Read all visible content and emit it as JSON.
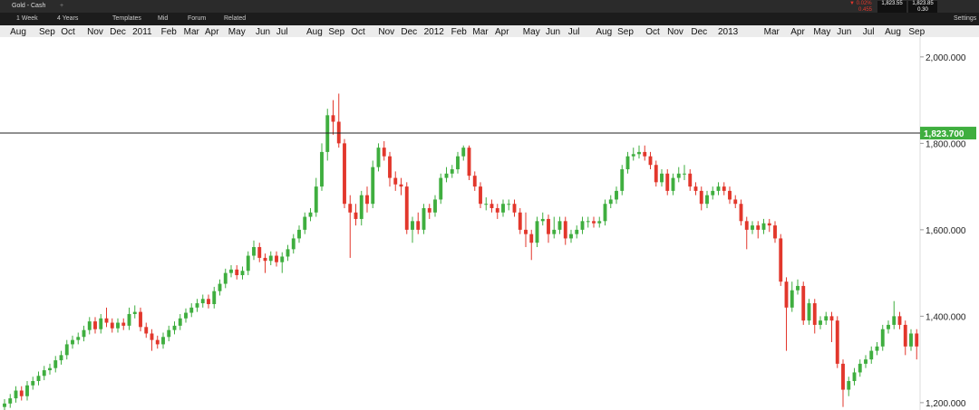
{
  "toolbar": {
    "instrument": "Gold - Cash",
    "interval": "1 Week",
    "span": "4 Years",
    "templates": "Templates",
    "mid": "Mid",
    "forum": "Forum",
    "related": "Related",
    "change_pct": "▼ 0.02%",
    "change": "0.455",
    "bid": "1,823.55",
    "ask": "1,823.85",
    "spread": "0.30",
    "settings": "Settings"
  },
  "chart_data": {
    "type": "candlestick",
    "up_color": "#3fae3f",
    "down_color": "#e2372c",
    "xlim": [
      -0.8,
      161.6
    ],
    "ylim": [
      1183,
      2073
    ],
    "xticks": [
      {
        "value": 2.4,
        "label": "Aug"
      },
      {
        "value": 7.5,
        "label": "Sep"
      },
      {
        "value": 11.2,
        "label": "Oct"
      },
      {
        "value": 16,
        "label": "Nov"
      },
      {
        "value": 20,
        "label": "Dec"
      },
      {
        "value": 24.3,
        "label": "2011"
      },
      {
        "value": 29,
        "label": "Feb"
      },
      {
        "value": 33,
        "label": "Mar"
      },
      {
        "value": 36.6,
        "label": "Apr"
      },
      {
        "value": 41,
        "label": "May"
      },
      {
        "value": 45.6,
        "label": "Jun"
      },
      {
        "value": 49,
        "label": "Jul"
      },
      {
        "value": 54.7,
        "label": "Aug"
      },
      {
        "value": 58.6,
        "label": "Sep"
      },
      {
        "value": 62.4,
        "label": "Oct"
      },
      {
        "value": 67.4,
        "label": "Nov"
      },
      {
        "value": 71.4,
        "label": "Dec"
      },
      {
        "value": 75.8,
        "label": "2012"
      },
      {
        "value": 80.2,
        "label": "Feb"
      },
      {
        "value": 84,
        "label": "Mar"
      },
      {
        "value": 87.8,
        "label": "Apr"
      },
      {
        "value": 93,
        "label": "May"
      },
      {
        "value": 96.8,
        "label": "Jun"
      },
      {
        "value": 100.5,
        "label": "Jul"
      },
      {
        "value": 105.8,
        "label": "Aug"
      },
      {
        "value": 109.6,
        "label": "Sep"
      },
      {
        "value": 114.4,
        "label": "Oct"
      },
      {
        "value": 118.4,
        "label": "Nov"
      },
      {
        "value": 122.6,
        "label": "Dec"
      },
      {
        "value": 127.7,
        "label": "2013"
      },
      {
        "value": 135.4,
        "label": "Mar"
      },
      {
        "value": 140,
        "label": "Apr"
      },
      {
        "value": 144.3,
        "label": "May"
      },
      {
        "value": 148.2,
        "label": "Jun"
      },
      {
        "value": 152.5,
        "label": "Jul"
      },
      {
        "value": 156.8,
        "label": "Aug"
      },
      {
        "value": 161,
        "label": "Sep"
      }
    ],
    "yticks": [
      {
        "value": 1200,
        "label": "1,200.000"
      },
      {
        "value": 1400,
        "label": "1,400.000"
      },
      {
        "value": 1600,
        "label": "1,600.000"
      },
      {
        "value": 1800,
        "label": "1,800.000"
      },
      {
        "value": 2000,
        "label": "2,000.000"
      }
    ],
    "price_line": {
      "value": 1823.7,
      "label": "1,823.700",
      "color": "#3fae3f"
    },
    "open": [
      1190,
      1198,
      1210,
      1228,
      1215,
      1240,
      1250,
      1262,
      1275,
      1280,
      1298,
      1310,
      1335,
      1345,
      1352,
      1368,
      1388,
      1370,
      1395,
      1385,
      1372,
      1385,
      1378,
      1405,
      1410,
      1375,
      1360,
      1345,
      1335,
      1352,
      1368,
      1378,
      1395,
      1408,
      1420,
      1430,
      1440,
      1428,
      1458,
      1475,
      1500,
      1508,
      1495,
      1505,
      1540,
      1560,
      1535,
      1528,
      1540,
      1525,
      1538,
      1555,
      1580,
      1600,
      1630,
      1640,
      1700,
      1780,
      1865,
      1850,
      1800,
      1660,
      1640,
      1625,
      1680,
      1660,
      1745,
      1790,
      1770,
      1720,
      1705,
      1700,
      1600,
      1620,
      1600,
      1650,
      1640,
      1670,
      1720,
      1730,
      1740,
      1770,
      1790,
      1725,
      1700,
      1660,
      1660,
      1650,
      1640,
      1660,
      1660,
      1640,
      1600,
      1590,
      1570,
      1620,
      1625,
      1590,
      1600,
      1620,
      1580,
      1590,
      1600,
      1620,
      1620,
      1615,
      1620,
      1660,
      1670,
      1690,
      1740,
      1770,
      1775,
      1780,
      1770,
      1750,
      1710,
      1730,
      1690,
      1720,
      1730,
      1730,
      1700,
      1690,
      1660,
      1680,
      1690,
      1700,
      1690,
      1670,
      1660,
      1620,
      1600,
      1610,
      1600,
      1615,
      1610,
      1580,
      1480,
      1420,
      1460,
      1470,
      1390,
      1430,
      1380,
      1390,
      1400,
      1390,
      1290,
      1230,
      1250,
      1270,
      1290,
      1300,
      1320,
      1330,
      1370,
      1380,
      1400,
      1380,
      1330,
      1360
    ],
    "high": [
      1208,
      1220,
      1238,
      1238,
      1250,
      1260,
      1272,
      1285,
      1290,
      1308,
      1320,
      1345,
      1355,
      1362,
      1378,
      1398,
      1398,
      1405,
      1420,
      1395,
      1395,
      1395,
      1420,
      1425,
      1420,
      1385,
      1370,
      1355,
      1362,
      1378,
      1388,
      1405,
      1418,
      1430,
      1440,
      1450,
      1450,
      1468,
      1485,
      1510,
      1518,
      1518,
      1515,
      1550,
      1575,
      1570,
      1545,
      1550,
      1550,
      1548,
      1565,
      1590,
      1610,
      1640,
      1650,
      1720,
      1800,
      1880,
      1900,
      1915,
      1810,
      1680,
      1660,
      1690,
      1700,
      1760,
      1800,
      1805,
      1780,
      1735,
      1720,
      1710,
      1630,
      1640,
      1660,
      1660,
      1680,
      1730,
      1745,
      1750,
      1780,
      1795,
      1795,
      1735,
      1710,
      1675,
      1670,
      1660,
      1670,
      1670,
      1670,
      1650,
      1640,
      1600,
      1630,
      1640,
      1635,
      1630,
      1630,
      1630,
      1600,
      1610,
      1630,
      1630,
      1630,
      1630,
      1670,
      1680,
      1700,
      1750,
      1780,
      1790,
      1795,
      1795,
      1780,
      1760,
      1740,
      1740,
      1730,
      1745,
      1750,
      1740,
      1710,
      1700,
      1690,
      1700,
      1710,
      1710,
      1700,
      1680,
      1670,
      1630,
      1620,
      1620,
      1625,
      1625,
      1620,
      1590,
      1490,
      1480,
      1485,
      1480,
      1440,
      1440,
      1400,
      1410,
      1410,
      1400,
      1300,
      1260,
      1280,
      1300,
      1310,
      1330,
      1340,
      1380,
      1390,
      1435,
      1410,
      1390,
      1370,
      1370
    ],
    "low": [
      1180,
      1188,
      1200,
      1205,
      1205,
      1230,
      1240,
      1252,
      1265,
      1270,
      1288,
      1300,
      1325,
      1335,
      1342,
      1358,
      1360,
      1360,
      1375,
      1362,
      1362,
      1368,
      1368,
      1395,
      1365,
      1350,
      1320,
      1325,
      1325,
      1342,
      1358,
      1368,
      1385,
      1398,
      1410,
      1420,
      1418,
      1418,
      1448,
      1465,
      1490,
      1485,
      1485,
      1495,
      1530,
      1525,
      1500,
      1518,
      1515,
      1500,
      1528,
      1545,
      1570,
      1590,
      1620,
      1630,
      1690,
      1760,
      1820,
      1790,
      1650,
      1535,
      1610,
      1610,
      1640,
      1650,
      1735,
      1760,
      1700,
      1690,
      1680,
      1590,
      1570,
      1590,
      1590,
      1625,
      1630,
      1660,
      1710,
      1720,
      1730,
      1760,
      1715,
      1690,
      1650,
      1645,
      1640,
      1625,
      1630,
      1645,
      1630,
      1590,
      1560,
      1530,
      1560,
      1610,
      1570,
      1580,
      1590,
      1565,
      1570,
      1580,
      1590,
      1605,
      1605,
      1605,
      1610,
      1650,
      1660,
      1680,
      1730,
      1760,
      1765,
      1760,
      1740,
      1700,
      1700,
      1680,
      1680,
      1710,
      1715,
      1690,
      1680,
      1645,
      1650,
      1670,
      1680,
      1680,
      1660,
      1650,
      1610,
      1555,
      1590,
      1580,
      1590,
      1595,
      1570,
      1470,
      1320,
      1410,
      1450,
      1380,
      1380,
      1360,
      1370,
      1380,
      1340,
      1280,
      1190,
      1215,
      1240,
      1260,
      1280,
      1290,
      1310,
      1320,
      1360,
      1370,
      1370,
      1310,
      1320,
      1300
    ],
    "close": [
      1198,
      1210,
      1228,
      1215,
      1240,
      1250,
      1262,
      1275,
      1280,
      1298,
      1310,
      1335,
      1345,
      1352,
      1368,
      1388,
      1370,
      1395,
      1385,
      1372,
      1385,
      1378,
      1405,
      1410,
      1375,
      1360,
      1345,
      1335,
      1352,
      1368,
      1378,
      1395,
      1408,
      1420,
      1430,
      1440,
      1428,
      1458,
      1475,
      1500,
      1508,
      1495,
      1505,
      1540,
      1560,
      1535,
      1528,
      1540,
      1525,
      1538,
      1555,
      1580,
      1600,
      1630,
      1640,
      1700,
      1780,
      1865,
      1850,
      1800,
      1660,
      1640,
      1625,
      1680,
      1660,
      1745,
      1790,
      1770,
      1720,
      1705,
      1700,
      1600,
      1620,
      1600,
      1650,
      1640,
      1670,
      1720,
      1730,
      1740,
      1770,
      1790,
      1725,
      1700,
      1660,
      1660,
      1650,
      1640,
      1660,
      1660,
      1640,
      1600,
      1590,
      1570,
      1620,
      1625,
      1590,
      1600,
      1620,
      1580,
      1590,
      1600,
      1620,
      1620,
      1615,
      1620,
      1660,
      1670,
      1690,
      1740,
      1770,
      1775,
      1780,
      1770,
      1750,
      1710,
      1730,
      1690,
      1720,
      1730,
      1730,
      1700,
      1690,
      1660,
      1680,
      1690,
      1700,
      1690,
      1670,
      1660,
      1620,
      1600,
      1610,
      1600,
      1615,
      1610,
      1580,
      1480,
      1420,
      1460,
      1470,
      1390,
      1430,
      1380,
      1390,
      1400,
      1390,
      1290,
      1230,
      1250,
      1270,
      1290,
      1300,
      1320,
      1330,
      1370,
      1380,
      1400,
      1380,
      1330,
      1360,
      1330
    ]
  }
}
